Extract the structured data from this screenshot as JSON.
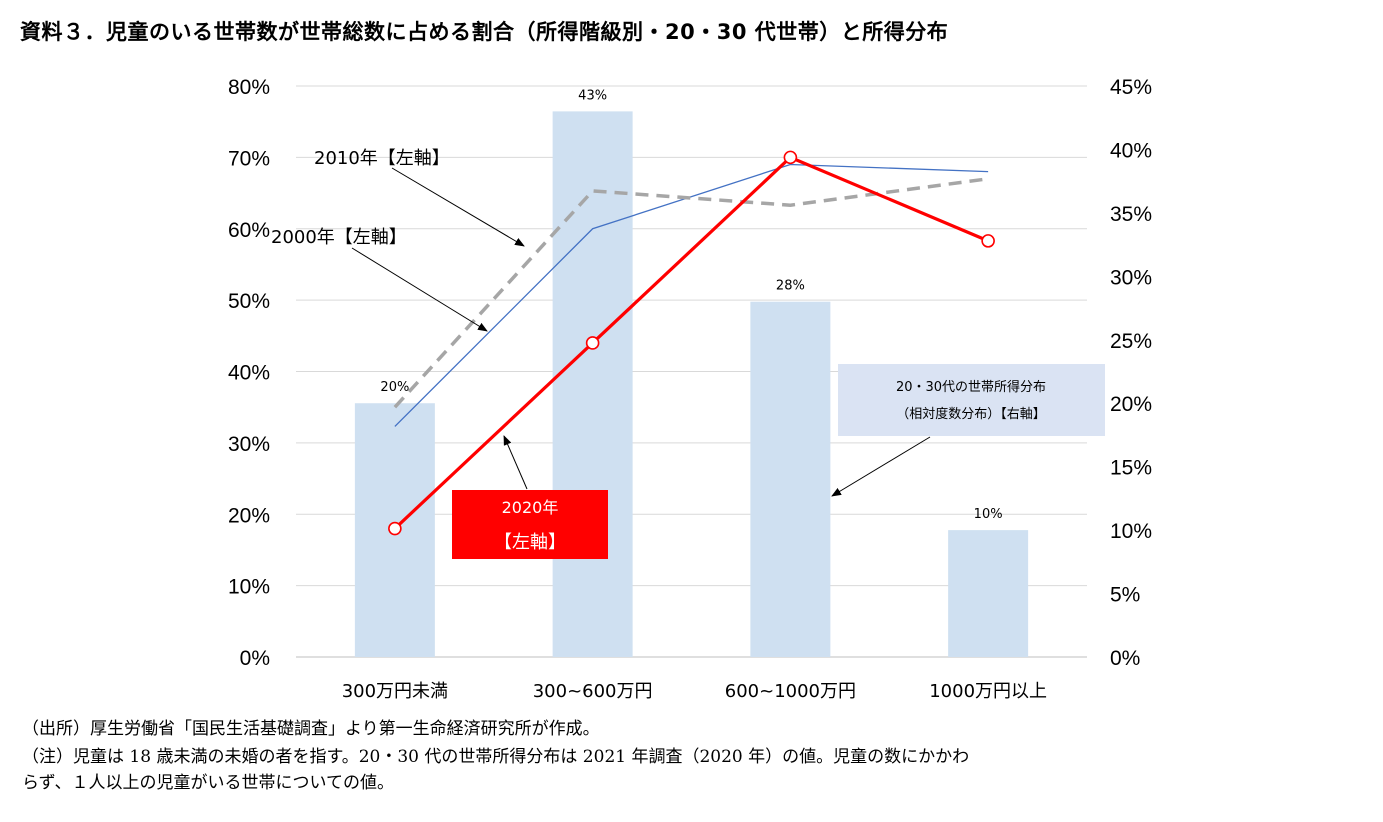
{
  "title": "資料３．児童のいる世帯数が世帯総数に占める割合（所得階級別・20・30 代世帯）と所得分布",
  "chart_data": {
    "type": "bar+line",
    "categories": [
      "300万円未満",
      "300~600万円",
      "600~1000万円",
      "1000万円以上"
    ],
    "left_axis": {
      "ticks": [
        "0%",
        "10%",
        "20%",
        "30%",
        "40%",
        "50%",
        "60%",
        "70%",
        "80%"
      ],
      "ylim": [
        0,
        80
      ]
    },
    "right_axis": {
      "ticks": [
        "0%",
        "5%",
        "10%",
        "15%",
        "20%",
        "25%",
        "30%",
        "35%",
        "40%",
        "45%"
      ],
      "ylim": [
        0,
        45
      ]
    },
    "bars": {
      "axis": "right",
      "values": [
        20,
        43,
        28,
        10
      ],
      "labels": [
        "20%",
        "43%",
        "28%",
        "10%"
      ],
      "color": "#cfe0f1"
    },
    "series": [
      {
        "key": "y2000",
        "axis": "left",
        "values": [
          32.3,
          60.0,
          69.0,
          68.0
        ],
        "color": "#4472c4",
        "style": "solid-thin"
      },
      {
        "key": "y2010",
        "axis": "left",
        "values": [
          35.0,
          65.3,
          63.3,
          67.0
        ],
        "color": "#a6a6a6",
        "style": "dashed"
      },
      {
        "key": "y2020",
        "axis": "left",
        "values": [
          18.0,
          44.0,
          70.0,
          58.3
        ],
        "color": "#ff0000",
        "style": "solid-markers"
      }
    ],
    "annotations": {
      "y2010": "2010年【左軸】",
      "y2000": "2000年【左軸】",
      "y2020_line1": "2020年",
      "y2020_line2": "【左軸】",
      "dist_line1": "20・30代の世帯所得分布",
      "dist_line2": "（相対度数分布）【右軸】"
    },
    "grid": true
  },
  "notes": {
    "source": "（出所）厚生労働省「国民生活基礎調査」より第一生命経済研究所が作成。",
    "note1": "（注）児童は 18 歳未満の未婚の者を指す。20・30 代の世帯所得分布は 2021 年調査（2020 年）の値。児童の数にかかわ",
    "note2": "らず、１人以上の児童がいる世帯についての値。"
  }
}
